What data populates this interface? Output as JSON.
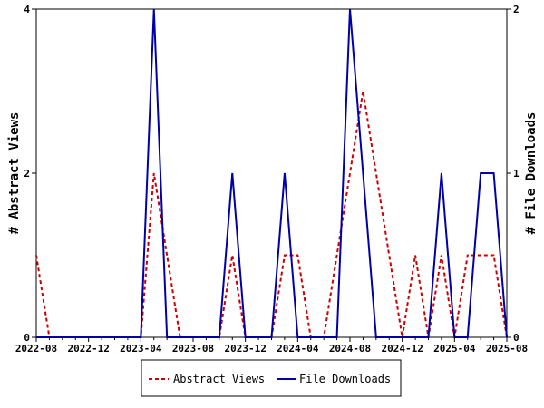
{
  "chart_data": {
    "type": "line",
    "x": [
      "2022-08",
      "2022-09",
      "2022-10",
      "2022-11",
      "2022-12",
      "2023-01",
      "2023-02",
      "2023-03",
      "2023-04",
      "2023-05",
      "2023-06",
      "2023-07",
      "2023-08",
      "2023-09",
      "2023-10",
      "2023-11",
      "2023-12",
      "2024-01",
      "2024-02",
      "2024-03",
      "2024-04",
      "2024-05",
      "2024-06",
      "2024-07",
      "2024-08",
      "2024-09",
      "2024-10",
      "2024-11",
      "2024-12",
      "2025-01",
      "2025-02",
      "2025-03",
      "2025-04",
      "2025-05",
      "2025-06",
      "2025-07",
      "2025-08"
    ],
    "x_tick_labels": [
      "2022-08",
      "2022-12",
      "2023-04",
      "2023-08",
      "2023-12",
      "2024-04",
      "2024-08",
      "2024-12",
      "2025-04",
      "2025-08"
    ],
    "series": [
      {
        "name": "Abstract Views",
        "axis": "left",
        "color": "#cc0000",
        "style": "dashed",
        "values": [
          1,
          0,
          0,
          0,
          0,
          0,
          0,
          0,
          0,
          2,
          1,
          0,
          0,
          0,
          0,
          1,
          0,
          0,
          0,
          1,
          1,
          0,
          0,
          1,
          2,
          3,
          2,
          1,
          0,
          1,
          0,
          1,
          0,
          1,
          1,
          1,
          0
        ]
      },
      {
        "name": "File Downloads",
        "axis": "right",
        "color": "#0000aa",
        "style": "solid",
        "values": [
          0,
          0,
          0,
          0,
          0,
          0,
          0,
          0,
          0,
          2,
          0,
          0,
          0,
          0,
          0,
          1,
          0,
          0,
          0,
          1,
          0,
          0,
          0,
          0,
          2,
          1,
          0,
          0,
          0,
          0,
          0,
          1,
          0,
          0,
          1,
          1,
          0
        ]
      }
    ],
    "ylabel_left": "# Abstract Views",
    "ylabel_right": "# File Downloads",
    "ylim_left": [
      0,
      4
    ],
    "ylim_right": [
      0,
      2
    ],
    "yticks_left": [
      "0",
      "2",
      "4"
    ],
    "yticks_right": [
      "0",
      "1",
      "2"
    ],
    "grid": false,
    "legend": "bottom"
  }
}
